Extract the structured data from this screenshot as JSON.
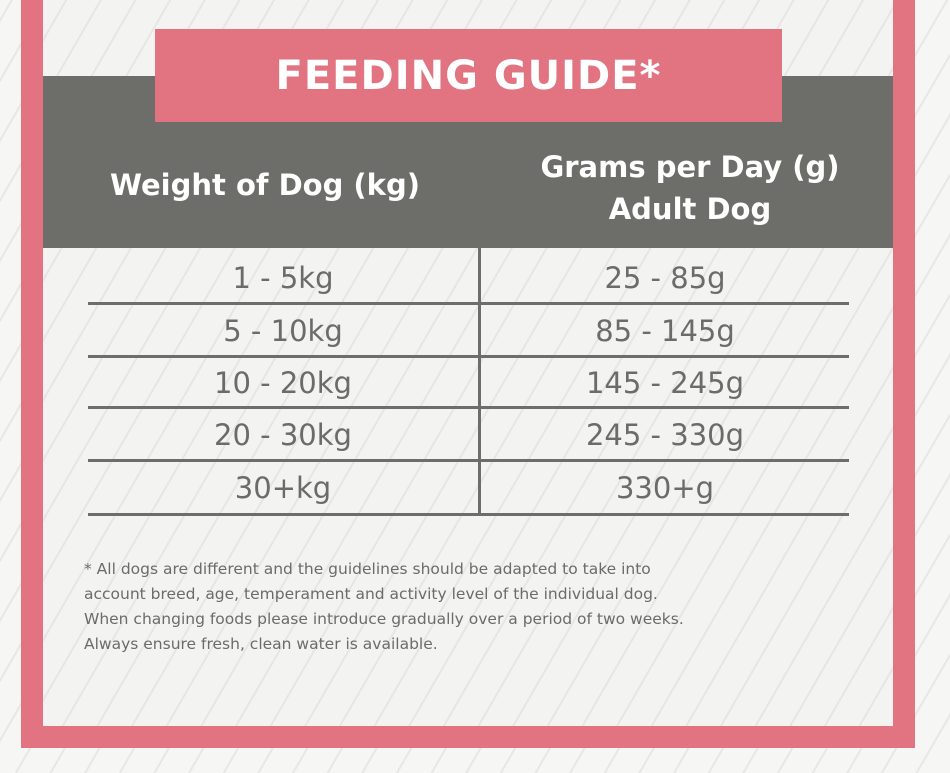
{
  "title": "FEEDING GUIDE*",
  "table": {
    "headers": {
      "weight": "Weight of Dog (kg)",
      "grams_line1": "Grams per Day (g)",
      "grams_line2": "Adult Dog"
    },
    "rows": [
      {
        "weight": "1 - 5kg",
        "grams": "25 - 85g"
      },
      {
        "weight": "5 - 10kg",
        "grams": "85 - 145g"
      },
      {
        "weight": "10 - 20kg",
        "grams": "145 - 245g"
      },
      {
        "weight": "20 - 30kg",
        "grams": "245 - 330g"
      },
      {
        "weight": "30+kg",
        "grams": "330+g"
      }
    ]
  },
  "footnote": {
    "line1": "* All dogs are different and the guidelines should be adapted to take into",
    "line2": "account breed, age, temperament and activity level of the individual dog.",
    "line3": "When changing foods please introduce gradually over a period of two weeks.",
    "line4": "Always ensure fresh, clean water is available."
  },
  "colors": {
    "accent_pink": "#e27481",
    "header_grey": "#6d6d69",
    "text_grey": "#6b6b68",
    "panel_bg": "#f3f3f2"
  }
}
